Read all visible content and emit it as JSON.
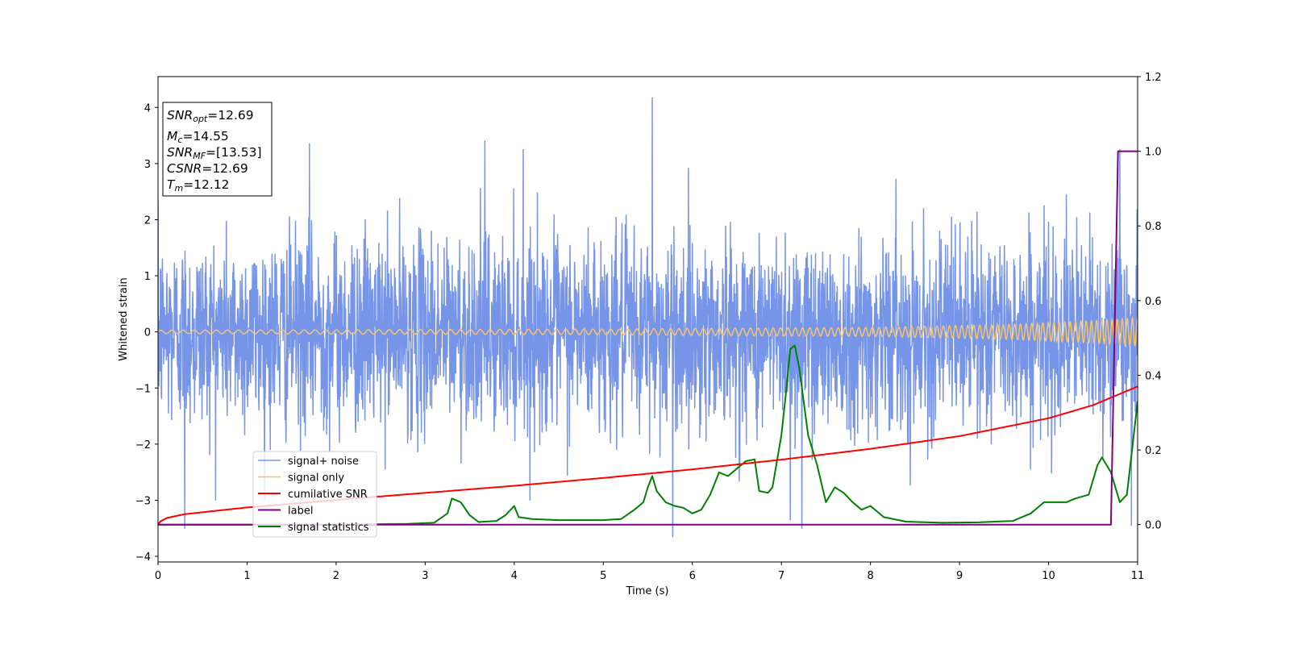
{
  "chart_data": {
    "type": "line",
    "xlabel": "Time (s)",
    "ylabel": "Whitened strain",
    "xlim": [
      0,
      11
    ],
    "ylim": [
      -4.1,
      4.55
    ],
    "y2lim": [
      -0.1,
      1.2
    ],
    "x_ticks": [
      "0",
      "1",
      "2",
      "3",
      "4",
      "5",
      "6",
      "7",
      "8",
      "9",
      "10",
      "11"
    ],
    "y_ticks": [
      "−4",
      "−3",
      "−2",
      "−1",
      "0",
      "1",
      "2",
      "3",
      "4"
    ],
    "y2_ticks": [
      "0.0",
      "0.2",
      "0.4",
      "0.6",
      "0.8",
      "1.0",
      "1.2"
    ],
    "grid": false,
    "info_box": {
      "snr_opt": {
        "main": "SNR",
        "sub": "opt",
        "rest": "=12.69"
      },
      "mc": {
        "main": "M",
        "sub": "c",
        "rest": "=14.55"
      },
      "snr_mf": {
        "main": "SNR",
        "sub": "MF",
        "rest": "=[13.53]"
      },
      "csnr": {
        "main": "CSNR",
        "rest": "=12.69"
      },
      "tm": {
        "main": "T",
        "sub": "m",
        "rest": "=12.12"
      }
    },
    "legend_position": "lower-left",
    "series": [
      {
        "name": "signal+ noise",
        "axis": "left",
        "color": "#7795e8",
        "noise_sigma": 0.85,
        "peak_points": [
          [
            0.3,
            -3.5
          ],
          [
            1.7,
            3.35
          ],
          [
            3.67,
            3.4
          ],
          [
            4.1,
            3.25
          ],
          [
            5.55,
            4.17
          ],
          [
            5.78,
            -3.65
          ],
          [
            7.1,
            -3.35
          ],
          [
            7.23,
            -3.5
          ],
          [
            10.8,
            3.25
          ],
          [
            10.93,
            -3.45
          ]
        ]
      },
      {
        "name": "signal only",
        "axis": "left",
        "color": "#f5c36b",
        "envelope": [
          [
            0,
            0.03
          ],
          [
            5,
            0.05
          ],
          [
            8,
            0.08
          ],
          [
            9.5,
            0.13
          ],
          [
            10.5,
            0.2
          ],
          [
            11,
            0.25
          ]
        ]
      },
      {
        "name": "cumilative SNR",
        "axis": "right",
        "color": "#ff0000",
        "points": [
          [
            0,
            0.0
          ],
          [
            0.02,
            0.008
          ],
          [
            0.1,
            0.018
          ],
          [
            0.3,
            0.028
          ],
          [
            1,
            0.046
          ],
          [
            2,
            0.066
          ],
          [
            3,
            0.085
          ],
          [
            4,
            0.104
          ],
          [
            5,
            0.125
          ],
          [
            6,
            0.148
          ],
          [
            7,
            0.174
          ],
          [
            8,
            0.203
          ],
          [
            9,
            0.237
          ],
          [
            10,
            0.285
          ],
          [
            10.5,
            0.32
          ],
          [
            11,
            0.37
          ]
        ]
      },
      {
        "name": "label",
        "axis": "right",
        "color": "#800080",
        "points": [
          [
            0,
            0.0
          ],
          [
            10.7,
            0.0
          ],
          [
            10.78,
            1.0
          ],
          [
            11,
            1.0
          ]
        ]
      },
      {
        "name": "signal statistics",
        "axis": "right",
        "color": "#008000",
        "points": [
          [
            0,
            0.0
          ],
          [
            1,
            0.0
          ],
          [
            2,
            0.0
          ],
          [
            2.8,
            0.002
          ],
          [
            3.1,
            0.005
          ],
          [
            3.25,
            0.03
          ],
          [
            3.3,
            0.07
          ],
          [
            3.4,
            0.06
          ],
          [
            3.5,
            0.025
          ],
          [
            3.6,
            0.007
          ],
          [
            3.8,
            0.01
          ],
          [
            3.9,
            0.025
          ],
          [
            4.0,
            0.05
          ],
          [
            4.05,
            0.02
          ],
          [
            4.2,
            0.015
          ],
          [
            4.5,
            0.012
          ],
          [
            5.0,
            0.012
          ],
          [
            5.2,
            0.015
          ],
          [
            5.35,
            0.04
          ],
          [
            5.45,
            0.06
          ],
          [
            5.5,
            0.1
          ],
          [
            5.55,
            0.13
          ],
          [
            5.6,
            0.09
          ],
          [
            5.7,
            0.06
          ],
          [
            5.8,
            0.05
          ],
          [
            5.9,
            0.045
          ],
          [
            6.0,
            0.03
          ],
          [
            6.1,
            0.04
          ],
          [
            6.2,
            0.08
          ],
          [
            6.3,
            0.14
          ],
          [
            6.4,
            0.13
          ],
          [
            6.5,
            0.15
          ],
          [
            6.6,
            0.17
          ],
          [
            6.7,
            0.175
          ],
          [
            6.75,
            0.09
          ],
          [
            6.85,
            0.085
          ],
          [
            6.9,
            0.1
          ],
          [
            7.0,
            0.24
          ],
          [
            7.05,
            0.35
          ],
          [
            7.1,
            0.47
          ],
          [
            7.15,
            0.48
          ],
          [
            7.2,
            0.42
          ],
          [
            7.3,
            0.24
          ],
          [
            7.4,
            0.16
          ],
          [
            7.5,
            0.06
          ],
          [
            7.6,
            0.1
          ],
          [
            7.7,
            0.085
          ],
          [
            7.8,
            0.06
          ],
          [
            7.9,
            0.04
          ],
          [
            8.0,
            0.05
          ],
          [
            8.15,
            0.02
          ],
          [
            8.4,
            0.008
          ],
          [
            8.8,
            0.005
          ],
          [
            9.2,
            0.006
          ],
          [
            9.6,
            0.01
          ],
          [
            9.8,
            0.03
          ],
          [
            9.95,
            0.06
          ],
          [
            10.1,
            0.06
          ],
          [
            10.2,
            0.06
          ],
          [
            10.3,
            0.07
          ],
          [
            10.45,
            0.08
          ],
          [
            10.55,
            0.16
          ],
          [
            10.6,
            0.18
          ],
          [
            10.7,
            0.14
          ],
          [
            10.8,
            0.06
          ],
          [
            10.88,
            0.08
          ],
          [
            11.0,
            0.33
          ]
        ]
      }
    ]
  }
}
